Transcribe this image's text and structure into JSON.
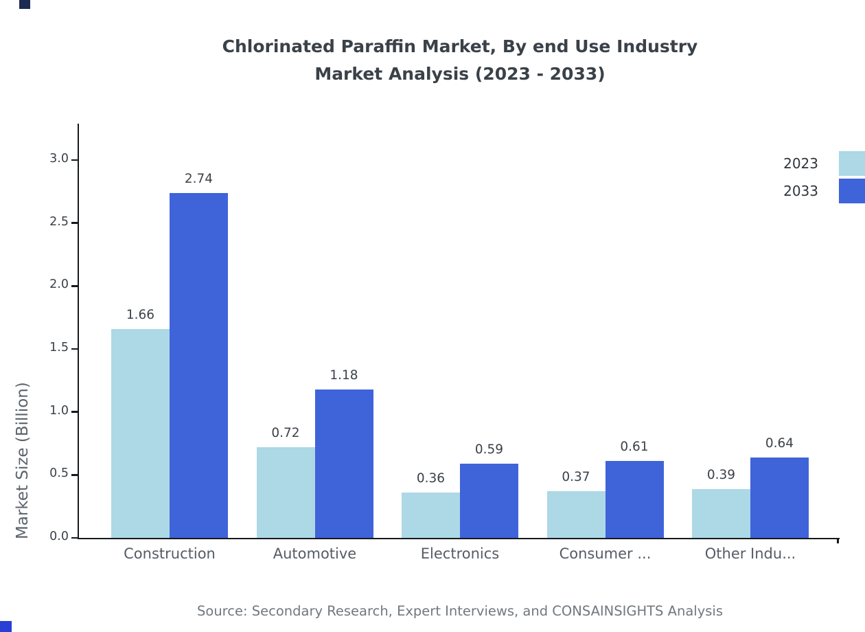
{
  "title": {
    "line1": "Chlorinated Paraffin Market, By end Use Industry",
    "line2": "Market Analysis (2023 - 2033)"
  },
  "source": "Source: Secondary Research, Expert Interviews, and CONSAINSIGHTS Analysis",
  "legend": [
    {
      "label": "2023",
      "color": "#add8e6"
    },
    {
      "label": "2033",
      "color": "#3f63d9"
    }
  ],
  "chart_data": {
    "type": "bar",
    "title": "Chlorinated Paraffin Market, By end Use Industry Market Analysis (2023 - 2033)",
    "categories": [
      "Construction",
      "Automotive",
      "Electronics",
      "Consumer ...",
      "Other Indu..."
    ],
    "series": [
      {
        "name": "2023",
        "color": "#add8e6",
        "values": [
          1.66,
          0.72,
          0.36,
          0.37,
          0.39
        ]
      },
      {
        "name": "2033",
        "color": "#3f63d9",
        "values": [
          2.74,
          1.18,
          0.59,
          0.61,
          0.64
        ]
      }
    ],
    "xlabel": "",
    "ylabel": "Market Size (Billion)",
    "ylim": [
      0,
      3.3
    ],
    "yticks": [
      0.0,
      0.5,
      1.0,
      1.5,
      2.0,
      2.5,
      3.0
    ],
    "grid": false,
    "legend_position": "top-right",
    "value_labels": true
  }
}
